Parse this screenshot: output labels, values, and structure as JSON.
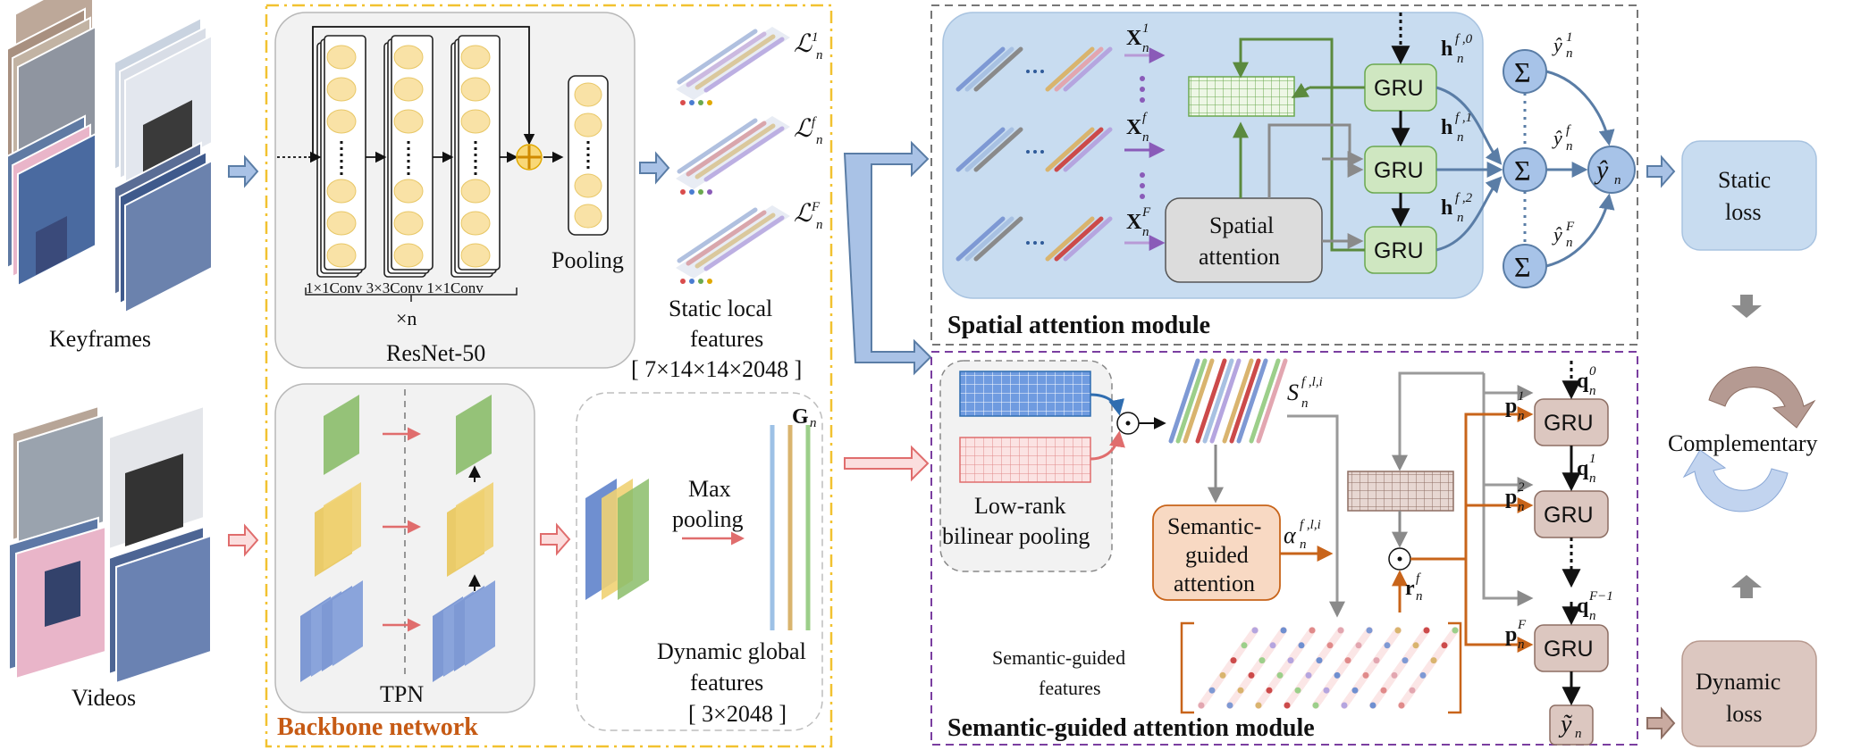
{
  "inputs": {
    "keyframes": "Keyframes",
    "videos": "Videos"
  },
  "backbone": {
    "title": "Backbone network",
    "resnet": {
      "label": "ResNet-50",
      "conv_labels": "1×1Conv 3×3Conv 1×1Conv",
      "repeat": "×n",
      "pooling": "Pooling"
    },
    "tpn": "TPN",
    "maxpool": [
      "Max",
      "pooling"
    ],
    "static_features": [
      "Static local",
      "features",
      "[ 7×14×14×2048 ]"
    ],
    "dynamic_features": [
      "Dynamic global",
      "features",
      "[ 3×2048 ]"
    ],
    "G": "G",
    "L_sup": [
      "1",
      "f",
      "F"
    ]
  },
  "spatial": {
    "title": "Spatial attention module",
    "attention": [
      "Spatial",
      "attention"
    ],
    "gru": "GRU",
    "x_sup": [
      "1",
      "f",
      "F"
    ],
    "h_sup": [
      "f ,0",
      "f ,1",
      "f ,2"
    ],
    "sigma": "Σ",
    "yhat_sup": [
      "1",
      "f",
      "F"
    ]
  },
  "semantic": {
    "title": "Semantic-guided attention module",
    "bilinear": [
      "Low-rank",
      "bilinear pooling"
    ],
    "attention": [
      "Semantic-",
      "guided",
      "attention"
    ],
    "features": [
      "Semantic-guided",
      "features"
    ],
    "S_sup": "f ,l,i",
    "alpha_sup": "f ,l,i",
    "r_sup": "f",
    "gru": "GRU",
    "p_sup": [
      "1",
      "2",
      "F"
    ],
    "q_sup": [
      "0",
      "1",
      "F−1"
    ]
  },
  "losses": {
    "static": [
      "Static",
      "loss"
    ],
    "dynamic": [
      "Dynamic",
      "loss"
    ],
    "complementary": "Complementary"
  }
}
